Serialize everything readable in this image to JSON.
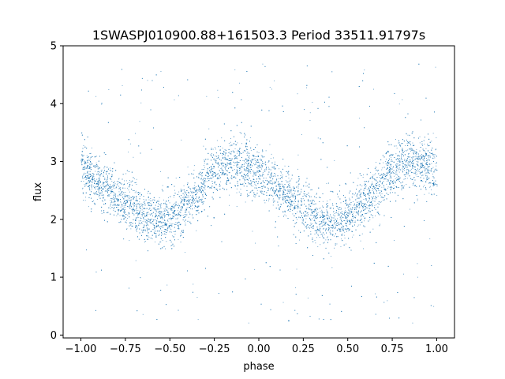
{
  "chart_data": {
    "type": "scatter",
    "title": "1SWASPJ010900.88+161503.3 Period 33511.91797s",
    "xlabel": "phase",
    "ylabel": "flux",
    "xlim": [
      -1.1,
      1.1
    ],
    "ylim": [
      -0.05,
      5.0
    ],
    "x_ticks": [
      {
        "value": -1.0,
        "label": "−1.00"
      },
      {
        "value": -0.75,
        "label": "−0.75"
      },
      {
        "value": -0.5,
        "label": "−0.50"
      },
      {
        "value": -0.25,
        "label": "−0.25"
      },
      {
        "value": 0.0,
        "label": "0.00"
      },
      {
        "value": 0.25,
        "label": "0.25"
      },
      {
        "value": 0.5,
        "label": "0.50"
      },
      {
        "value": 0.75,
        "label": "0.75"
      },
      {
        "value": 1.0,
        "label": "1.00"
      }
    ],
    "y_ticks": [
      {
        "value": 0,
        "label": "0"
      },
      {
        "value": 1,
        "label": "1"
      },
      {
        "value": 2,
        "label": "2"
      },
      {
        "value": 3,
        "label": "3"
      },
      {
        "value": 4,
        "label": "4"
      },
      {
        "value": 5,
        "label": "5"
      }
    ],
    "grid": false,
    "point_color": "#1f77b4",
    "series_trend": {
      "phase": [
        -1.0,
        -0.875,
        -0.75,
        -0.625,
        -0.55,
        -0.5,
        -0.375,
        -0.25,
        -0.15,
        -0.1,
        0.0,
        0.125,
        0.25,
        0.375,
        0.45,
        0.5,
        0.625,
        0.75,
        0.85,
        0.9,
        1.0
      ],
      "flux": [
        2.85,
        2.6,
        2.3,
        2.05,
        1.98,
        2.0,
        2.35,
        2.85,
        3.0,
        2.95,
        2.8,
        2.5,
        2.2,
        2.0,
        1.98,
        2.05,
        2.4,
        2.85,
        3.0,
        2.95,
        2.8
      ]
    },
    "core_scatter": 0.22,
    "outlier_fraction": 0.06,
    "outlier_range": [
      0.2,
      4.7
    ],
    "point_count": 9000
  }
}
